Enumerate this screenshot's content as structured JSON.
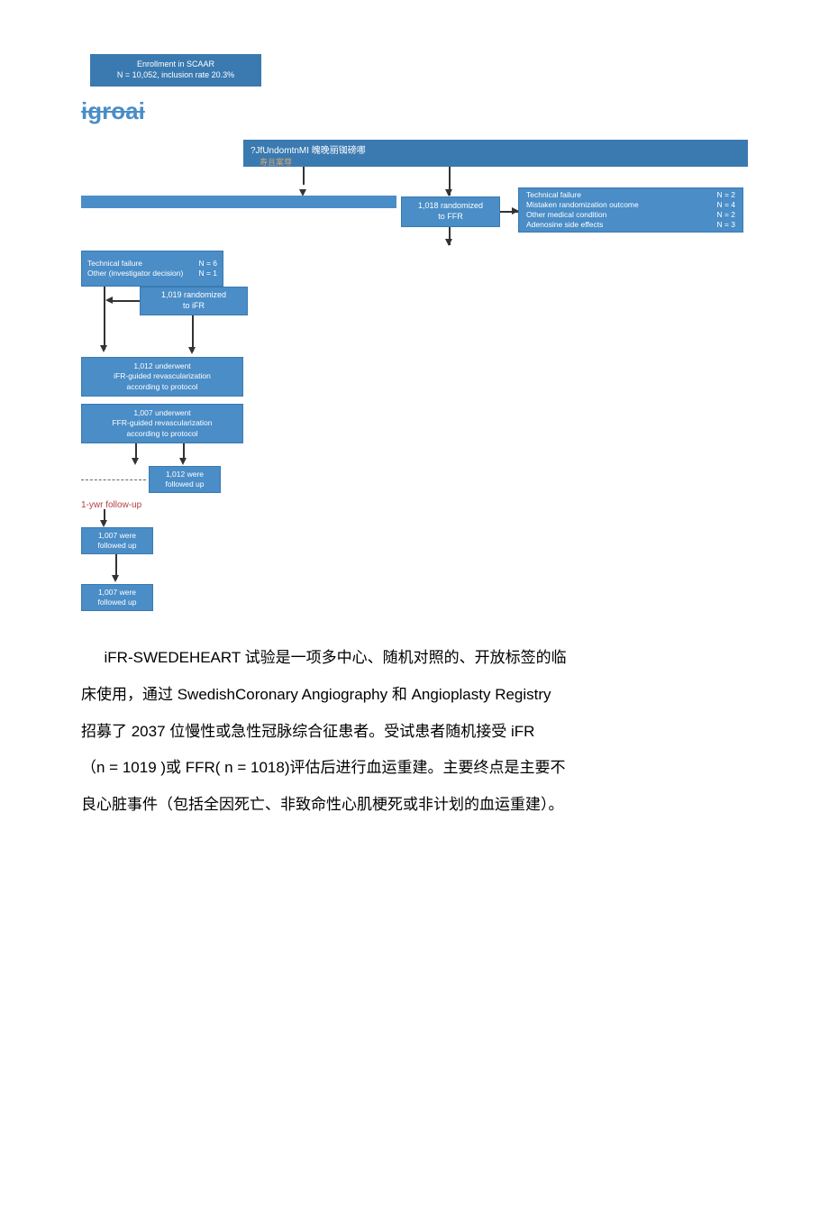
{
  "flowchart": {
    "enrollment": "Enrollment in SCAAR\nN = 10,052, inclusion rate 20.3%",
    "crossed_text": "igroai",
    "wide_bar_main": "?JfUndomtnMI 魄晚丽铷磅哪",
    "wide_bar_sub": "寿且案尊",
    "ffr_randomized": "1,018 randomized\nto FFR",
    "ffr_exclusions": [
      {
        "label": "Technical failure",
        "n": "N = 2"
      },
      {
        "label": "Mistaken randomization outcome",
        "n": "N = 4"
      },
      {
        "label": "Other medical condition",
        "n": "N = 2"
      },
      {
        "label": "Adenosine side effects",
        "n": "N = 3"
      }
    ],
    "ifr_exclusions": [
      {
        "label": "Technical failure",
        "n": "N = 6"
      },
      {
        "label": "Other (investigator decision)",
        "n": "N = 1"
      }
    ],
    "ifr_randomized": "1,019 randomized\nto iFR",
    "ifr_guided": "1,012 underwent\niFR-guided revascularization\naccording to protocol",
    "ffr_guided": "1,007 underwent\nFFR-guided revascularization\naccording to protocol",
    "followed_1012": "1,012 were\nfollowed up",
    "followup_label": "1-ywr follow-up",
    "followed_1007a": "1,007 were\nfollowed up",
    "followed_1007b": "1,007 were\nfollowed up",
    "colors": {
      "box_bg": "#4a8dc7",
      "box_dark": "#3a7ab0",
      "text_white": "#ffffff",
      "crossed": "#4a8dc7",
      "followup": "#b04040",
      "arrow": "#333333"
    }
  },
  "paragraphs": {
    "p1": "iFR-SWEDEHEART 试验是一项多中心、随机对照的、开放标签的临",
    "p2": "床使用，通过 SwedishCoronary Angiography 和 Angioplasty Registry",
    "p3": "招募了 2037 位慢性或急性冠脉综合征患者。受试患者随机接受 iFR",
    "p4": "（n = 1019 )或 FFR( n = 1018)评估后进行血运重建。主要终点是主要不",
    "p5": "良心脏事件（包括全因死亡、非致命性心肌梗死或非计划的血运重建）。"
  }
}
